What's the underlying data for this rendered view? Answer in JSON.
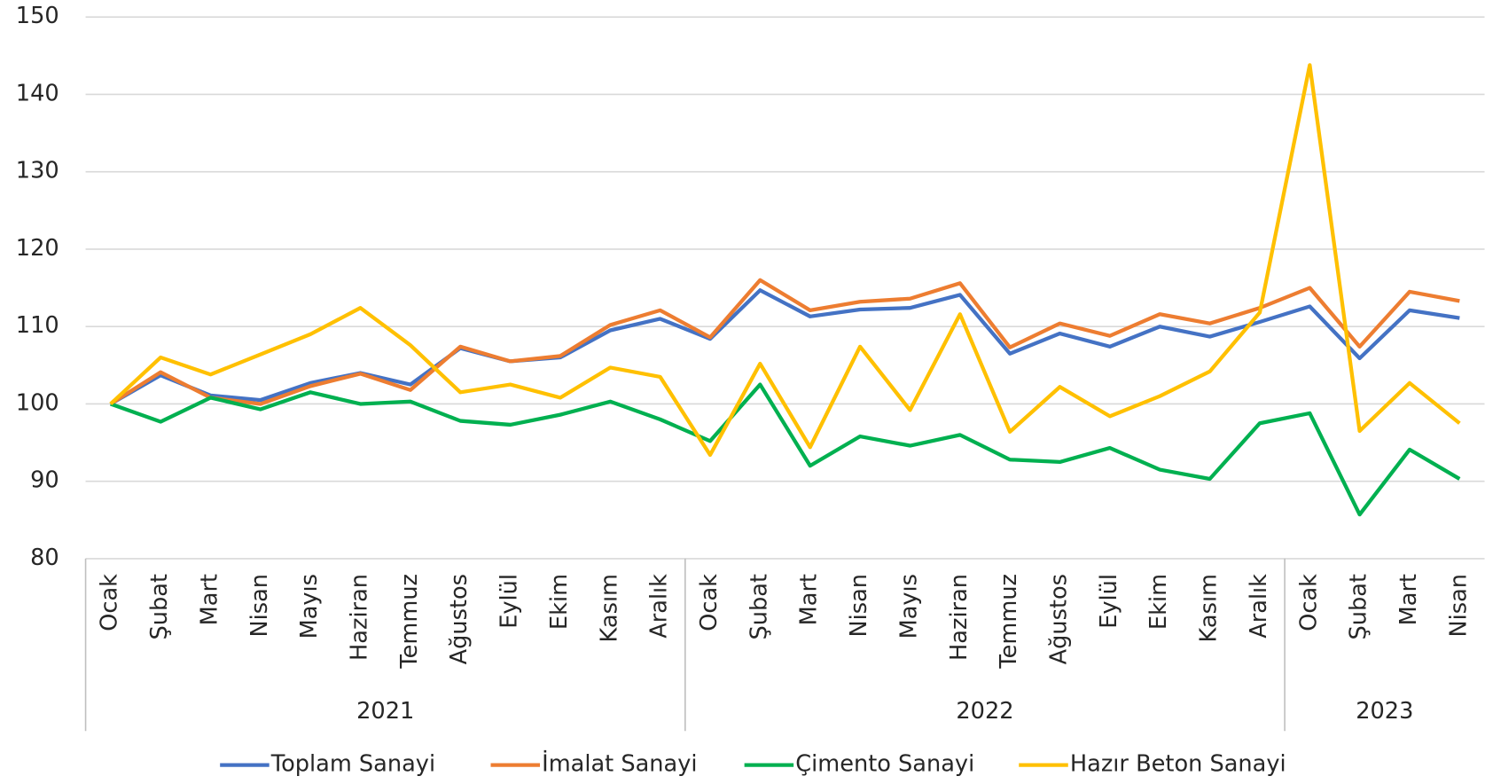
{
  "chart_data": {
    "type": "line",
    "categories": [
      "Ocak",
      "Şubat",
      "Mart",
      "Nisan",
      "Mayıs",
      "Haziran",
      "Temmuz",
      "Ağustos",
      "Eylül",
      "Ekim",
      "Kasım",
      "Aralık",
      "Ocak",
      "Şubat",
      "Mart",
      "Nisan",
      "Mayıs",
      "Haziran",
      "Temmuz",
      "Ağustos",
      "Eylül",
      "Ekim",
      "Kasım",
      "Aralık",
      "Ocak",
      "Şubat",
      "Mart",
      "Nisan"
    ],
    "groups": [
      {
        "label": "2021",
        "count": 12
      },
      {
        "label": "2022",
        "count": 12
      },
      {
        "label": "2023",
        "count": 4
      }
    ],
    "series": [
      {
        "name": "Toplam Sanayi",
        "color": "#4472c4",
        "values": [
          100,
          103.7,
          101.1,
          100.5,
          102.7,
          104.0,
          102.5,
          107.2,
          105.5,
          106.0,
          109.5,
          111.0,
          108.4,
          114.7,
          111.3,
          112.2,
          112.4,
          114.1,
          106.5,
          109.1,
          107.4,
          110.0,
          108.7,
          110.6,
          112.6,
          105.9,
          112.1,
          111.1
        ]
      },
      {
        "name": "İmalat Sanayi",
        "color": "#ed7d31",
        "values": [
          100,
          104.1,
          100.8,
          100.0,
          102.3,
          103.9,
          101.8,
          107.4,
          105.5,
          106.2,
          110.2,
          112.1,
          108.6,
          116.0,
          112.1,
          113.2,
          113.6,
          115.6,
          107.3,
          110.4,
          108.8,
          111.6,
          110.4,
          112.4,
          115.0,
          107.4,
          114.5,
          113.3
        ]
      },
      {
        "name": "Çimento Sanayi",
        "color": "#00b050",
        "values": [
          100,
          97.7,
          100.8,
          99.3,
          101.5,
          100.0,
          100.3,
          97.8,
          97.3,
          98.6,
          100.3,
          98.0,
          95.2,
          102.5,
          92.0,
          95.8,
          94.6,
          96.0,
          92.8,
          92.5,
          94.3,
          91.5,
          90.3,
          97.5,
          98.8,
          85.7,
          94.1,
          90.3
        ]
      },
      {
        "name": "Hazır Beton Sanayi",
        "color": "#ffc000",
        "values": [
          100,
          106.0,
          103.8,
          106.4,
          109.0,
          112.4,
          107.6,
          101.5,
          102.5,
          100.8,
          104.7,
          103.5,
          93.4,
          105.2,
          94.4,
          107.4,
          99.2,
          111.6,
          96.4,
          102.2,
          98.4,
          101.0,
          104.2,
          111.8,
          143.8,
          96.5,
          102.7,
          97.5
        ]
      }
    ],
    "ylim": [
      80,
      150
    ],
    "yticks": [
      80,
      90,
      100,
      110,
      120,
      130,
      140,
      150
    ],
    "grid": true,
    "legend": "bottom"
  }
}
